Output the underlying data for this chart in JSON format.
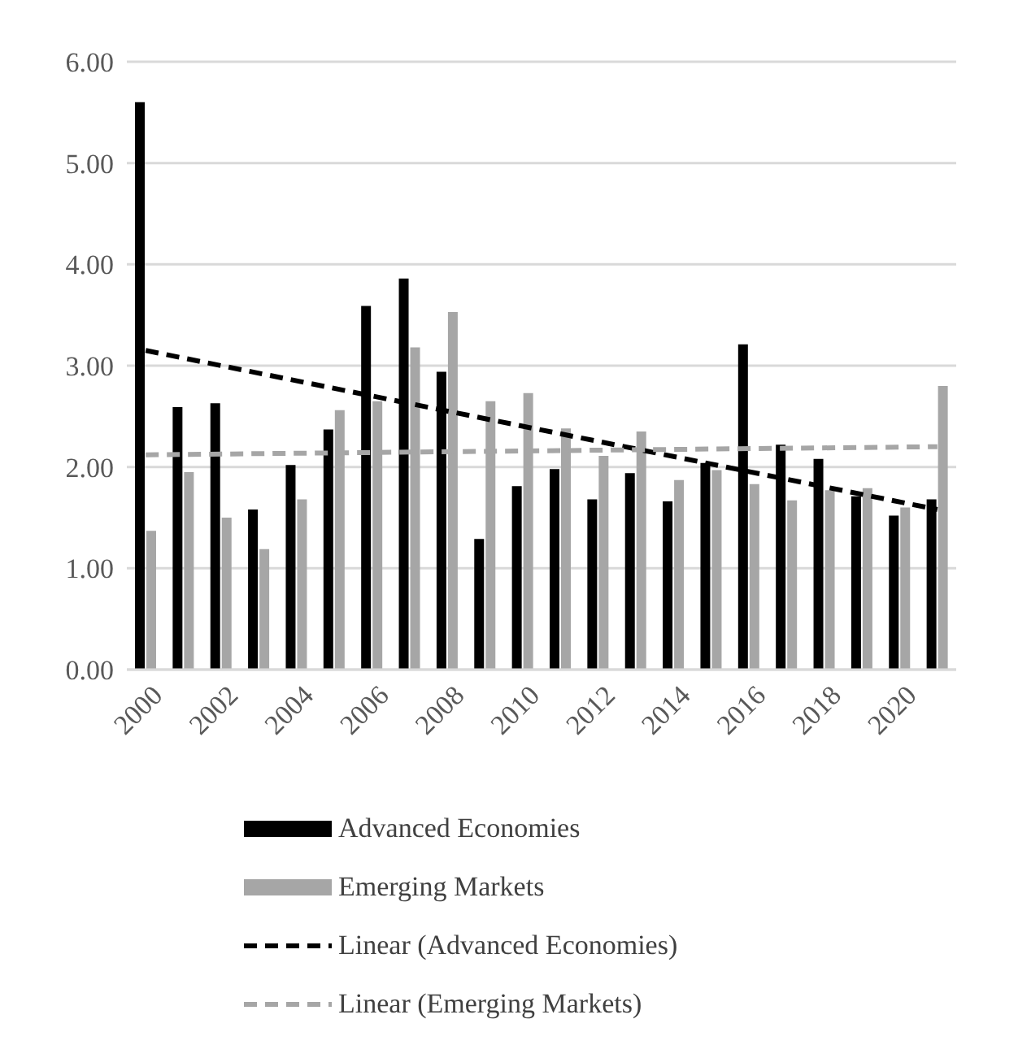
{
  "chart_data": {
    "type": "bar",
    "categories": [
      "2000",
      null,
      "2002",
      null,
      "2004",
      null,
      "2006",
      null,
      "2008",
      null,
      "2010",
      null,
      "2012",
      null,
      "2014",
      null,
      "2016",
      null,
      "2018",
      null,
      "2020",
      null
    ],
    "series": [
      {
        "name": "Advanced Economies",
        "color": "#000000",
        "values": [
          5.6,
          2.59,
          2.63,
          1.58,
          2.02,
          2.37,
          3.59,
          3.86,
          2.94,
          1.29,
          1.81,
          1.98,
          1.68,
          1.94,
          1.66,
          2.04,
          3.21,
          2.22,
          2.08,
          1.71,
          1.52,
          1.68
        ]
      },
      {
        "name": "Emerging Markets",
        "color": "#a6a6a6",
        "values": [
          1.37,
          1.95,
          1.5,
          1.19,
          1.68,
          2.56,
          2.65,
          3.18,
          3.53,
          2.65,
          2.73,
          2.38,
          2.11,
          2.35,
          1.87,
          1.97,
          1.83,
          1.67,
          1.77,
          1.79,
          1.6,
          2.8
        ]
      },
      {
        "name": "Linear (Advanced Economies)",
        "type": "line",
        "color": "#000000",
        "line_style": "dashed",
        "values": [
          3.15,
          null,
          null,
          null,
          null,
          null,
          null,
          null,
          null,
          null,
          null,
          null,
          null,
          null,
          null,
          null,
          null,
          null,
          null,
          null,
          null,
          1.58
        ]
      },
      {
        "name": "Linear (Emerging Markets)",
        "type": "line",
        "color": "#a6a6a6",
        "line_style": "dashed",
        "values": [
          2.12,
          null,
          null,
          null,
          null,
          null,
          null,
          null,
          null,
          null,
          null,
          null,
          null,
          null,
          null,
          null,
          null,
          null,
          null,
          null,
          null,
          2.2
        ]
      }
    ],
    "ylim": [
      0,
      6
    ],
    "yticks": [
      {
        "value": 0,
        "label": "0.00"
      },
      {
        "value": 1,
        "label": "1.00"
      },
      {
        "value": 2,
        "label": "2.00"
      },
      {
        "value": 3,
        "label": "3.00"
      },
      {
        "value": 4,
        "label": "4.00"
      },
      {
        "value": 5,
        "label": "5.00"
      },
      {
        "value": 6,
        "label": "6.00"
      }
    ],
    "grid": "y",
    "legend": "bottom",
    "marker": "none"
  }
}
